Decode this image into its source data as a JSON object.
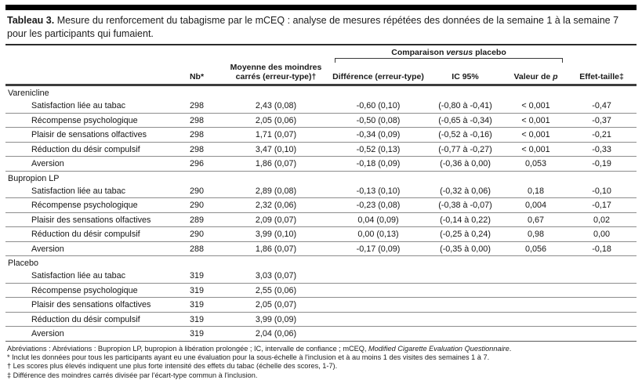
{
  "title": {
    "label": "Tableau 3.",
    "text": " Mesure du renforcement du tabagisme par le mCEQ : analyse de mesures répétées des données de la semaine 1 à la semaine 7 pour les participants qui fumaient."
  },
  "header": {
    "group_pre": "Comparaison ",
    "group_it": "versus",
    "group_post": " placebo",
    "col_nb": "Nb*",
    "col_mean": "Moyenne des moindres carrés (erreur-type)†",
    "col_diff": "Différence (erreur-type)",
    "col_ci": "IC 95%",
    "col_p_pre": "Valeur de ",
    "col_p_it": "p",
    "col_effect": "Effet-taille‡"
  },
  "table": {
    "columns": [
      "label",
      "nb",
      "mean",
      "diff",
      "ci",
      "p",
      "effect"
    ],
    "sections": [
      {
        "name": "Varenicline",
        "rows": [
          [
            "Satisfaction liée au tabac",
            "298",
            "2,43 (0,08)",
            "-0,60 (0,10)",
            "(-0,80 à -0,41)",
            "< 0,001",
            "-0,47"
          ],
          [
            "Récompense psychologique",
            "298",
            "2,05 (0,06)",
            "-0,50 (0,08)",
            "(-0,65 à -0,34)",
            "< 0,001",
            "-0,37"
          ],
          [
            "Plaisir de sensations olfactives",
            "298",
            "1,71 (0,07)",
            "-0,34 (0,09)",
            "(-0,52 à -0,16)",
            "< 0,001",
            "-0,21"
          ],
          [
            "Réduction du désir compulsif",
            "298",
            "3,47 (0,10)",
            "-0,52 (0,13)",
            "(-0,77 à -0,27)",
            "< 0,001",
            "-0,33"
          ],
          [
            "Aversion",
            "296",
            "1,86 (0,07)",
            "-0,18 (0,09)",
            "(-0,36 à 0,00)",
            "0,053",
            "-0,19"
          ]
        ]
      },
      {
        "name": "Bupropion LP",
        "rows": [
          [
            "Satisfaction liée au tabac",
            "290",
            "2,89 (0,08)",
            "-0,13 (0,10)",
            "(-0,32 à 0,06)",
            "0,18",
            "-0,10"
          ],
          [
            "Récompense psychologique",
            "290",
            "2,32 (0,06)",
            "-0,23 (0,08)",
            "(-0,38 à -0,07)",
            "0,004",
            "-0,17"
          ],
          [
            "Plaisir des sensations olfactives",
            "289",
            "2,09 (0,07)",
            "0,04 (0,09)",
            "(-0,14 à 0,22)",
            "0,67",
            "0,02"
          ],
          [
            "Réduction du désir compulsif",
            "290",
            "3,99 (0,10)",
            "0,00 (0,13)",
            "(-0,25 à 0,24)",
            "0,98",
            "0,00"
          ],
          [
            "Aversion",
            "288",
            "1,86 (0,07)",
            "-0,17 (0,09)",
            "(-0,35 à 0,00)",
            "0,056",
            "-0,18"
          ]
        ]
      },
      {
        "name": "Placebo",
        "rows": [
          [
            "Satisfaction liée au tabac",
            "319",
            "3,03 (0,07)",
            "",
            "",
            "",
            ""
          ],
          [
            "Récompense psychologique",
            "319",
            "2,55 (0,06)",
            "",
            "",
            "",
            ""
          ],
          [
            "Plaisir des sensations olfactives",
            "319",
            "2,05 (0,07)",
            "",
            "",
            "",
            ""
          ],
          [
            "Réduction du désir compulsif",
            "319",
            "3,99 (0,09)",
            "",
            "",
            "",
            ""
          ],
          [
            "Aversion",
            "319",
            "2,04 (0,06)",
            "",
            "",
            "",
            ""
          ]
        ]
      }
    ]
  },
  "footnotes": [
    {
      "pre": "Abréviations : Abréviations : Bupropion LP, bupropion à libération prolongée ; IC, intervalle de confiance ; mCEQ, ",
      "it": "Modified Cigarette Evaluation Questionnaire",
      "post": "."
    },
    {
      "pre": "* Inclut les données pour tous les participants ayant eu une évaluation pour la sous-échelle à l'inclusion et à au moins 1 des visites des semaines 1 à 7.",
      "it": "",
      "post": ""
    },
    {
      "pre": "† Les scores plus élevés indiquent une plus forte intensité des effets du tabac (échelle des scores, 1-7).",
      "it": "",
      "post": ""
    },
    {
      "pre": "‡ Différence des moindres carrés divisée par l'écart-type commun à l'inclusion.",
      "it": "",
      "post": ""
    }
  ]
}
